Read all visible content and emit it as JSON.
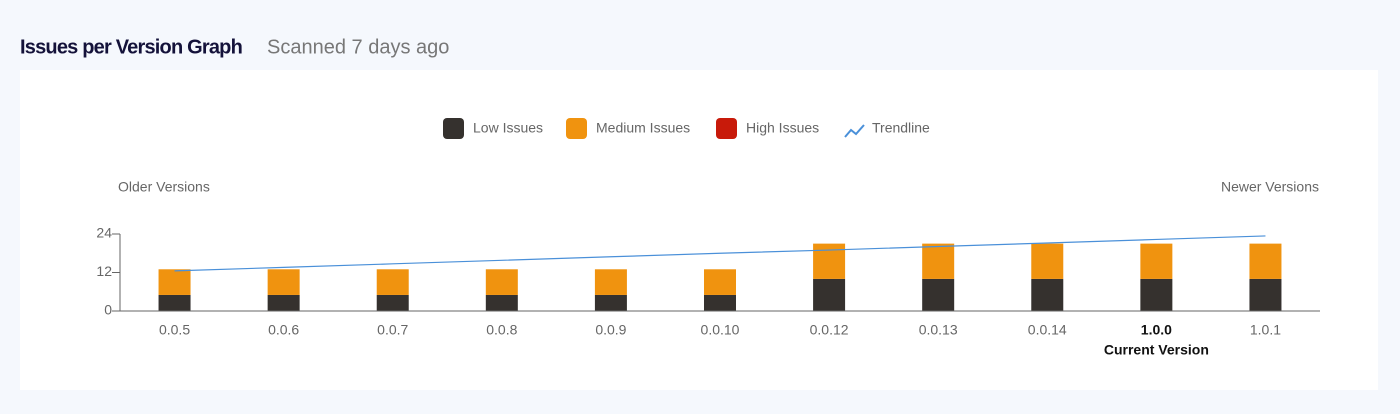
{
  "header": {
    "title": "Issues per Version Graph",
    "subtitle": "Scanned 7 days ago"
  },
  "chart_data": {
    "type": "stacked_bar",
    "annotations": {
      "left": "Older Versions",
      "right": "Newer Versions"
    },
    "categories": [
      "0.0.5",
      "0.0.6",
      "0.0.7",
      "0.0.8",
      "0.0.9",
      "0.0.10",
      "0.0.12",
      "0.0.13",
      "0.0.14",
      "1.0.0",
      "1.0.1"
    ],
    "current_category": "1.0.0",
    "current_label": "Current Version",
    "series": [
      {
        "name": "Low Issues",
        "color": "#35312e",
        "values": [
          5,
          5,
          5,
          5,
          5,
          5,
          10,
          10,
          10,
          10,
          10
        ]
      },
      {
        "name": "Medium Issues",
        "color": "#f0930f",
        "values": [
          8,
          8,
          8,
          8,
          8,
          8,
          11,
          11,
          11,
          11,
          11
        ]
      },
      {
        "name": "High Issues",
        "color": "#c81a0a",
        "values": [
          0,
          0,
          0,
          0,
          0,
          0,
          0,
          0,
          0,
          0,
          0
        ]
      },
      {
        "name": "Trendline",
        "type": "line",
        "color": "#4a90d9",
        "values": [
          12.5,
          13.6,
          14.7,
          15.8,
          16.9,
          18.0,
          19.0,
          20.1,
          21.2,
          22.3,
          23.4
        ]
      }
    ],
    "ylim": [
      0,
      24
    ],
    "yticks": [
      0,
      12,
      24
    ],
    "grid": false
  }
}
